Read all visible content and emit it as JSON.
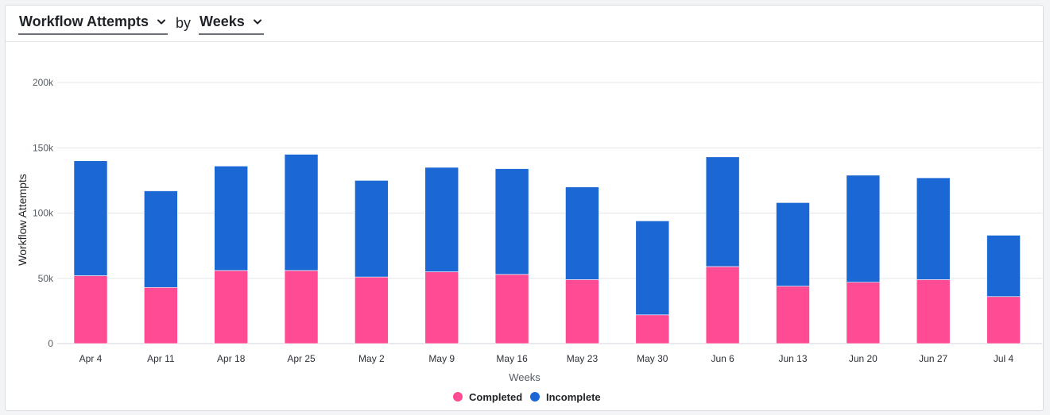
{
  "header": {
    "metric_label": "Workflow Attempts",
    "by_label": "by",
    "group_label": "Weeks"
  },
  "colors": {
    "completed": "#ff4b93",
    "incomplete": "#1b67d4",
    "grid": "#e3e5e8",
    "axis_text": "#555b63"
  },
  "chart_data": {
    "type": "bar",
    "stacked": true,
    "title": "",
    "xlabel": "Weeks",
    "ylabel": "Workflow Attempts",
    "ylim": [
      0,
      200000
    ],
    "y_ticks": [
      0,
      50000,
      100000,
      150000,
      200000
    ],
    "y_tick_labels": [
      "0",
      "50k",
      "100k",
      "150k",
      "200k"
    ],
    "categories": [
      "Apr 4",
      "Apr 11",
      "Apr 18",
      "Apr 25",
      "May 2",
      "May 9",
      "May 16",
      "May 23",
      "May 30",
      "Jun 6",
      "Jun 13",
      "Jun 20",
      "Jun 27",
      "Jul 4"
    ],
    "series": [
      {
        "name": "Completed",
        "color": "#ff4b93",
        "values": [
          52000,
          43000,
          56000,
          56000,
          51000,
          55000,
          53000,
          49000,
          22000,
          59000,
          44000,
          47000,
          49000,
          36000
        ]
      },
      {
        "name": "Incomplete",
        "color": "#1b67d4",
        "values": [
          88000,
          74000,
          80000,
          89000,
          74000,
          80000,
          81000,
          71000,
          72000,
          84000,
          64000,
          82000,
          78000,
          47000
        ]
      }
    ],
    "grid": true,
    "legend_position": "bottom-center"
  }
}
